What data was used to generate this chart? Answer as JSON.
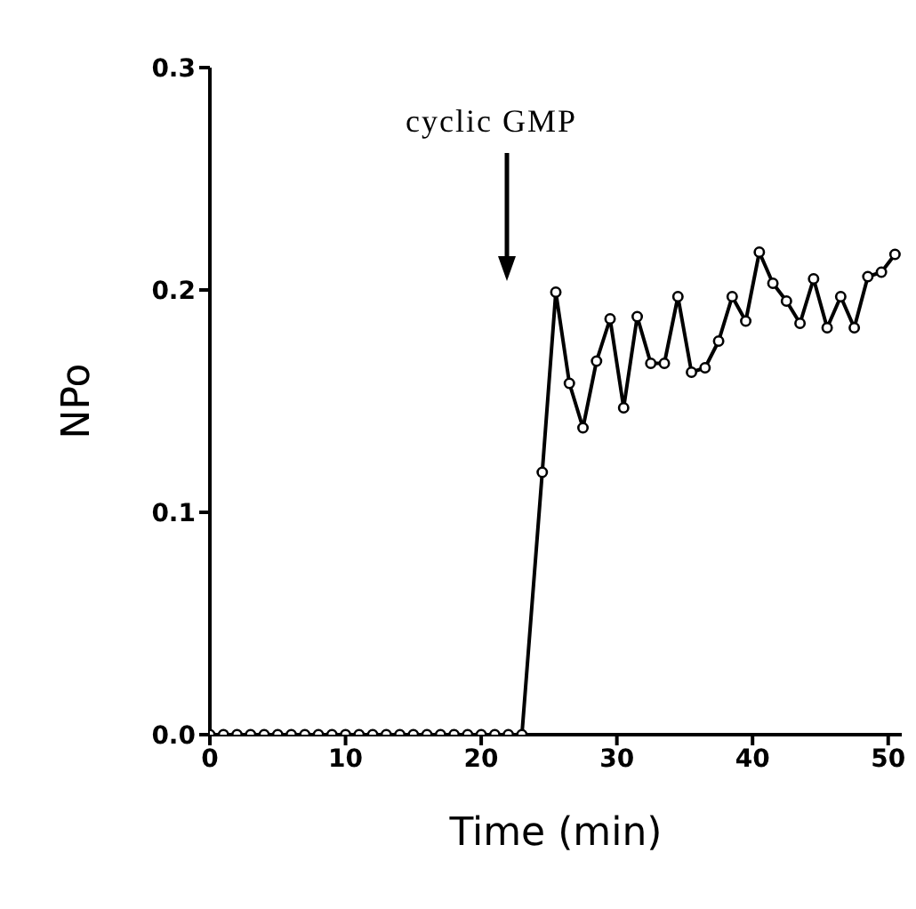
{
  "chart_data": {
    "type": "line",
    "xlabel": "Time (min)",
    "ylabel": "NPo",
    "annotations": [
      "cyclic GMP"
    ],
    "x": [
      0,
      1,
      2,
      3,
      4,
      5,
      6,
      7,
      8,
      9,
      10,
      11,
      12,
      13,
      14,
      15,
      16,
      17,
      18,
      19,
      20,
      21,
      22,
      23,
      24.5,
      25.5,
      26.5,
      27.5,
      28.5,
      29.5,
      30.5,
      31.5,
      32.5,
      33.5,
      34.5,
      35.5,
      36.5,
      37.5,
      38.5,
      39.5,
      40.5,
      41.5,
      42.5,
      43.5,
      44.5,
      45.5,
      46.5,
      47.5,
      48.5,
      49.5,
      50.5
    ],
    "series": [
      {
        "color": "#000000",
        "values": [
          0,
          0,
          0,
          0,
          0,
          0,
          0,
          0,
          0,
          0,
          0,
          0,
          0,
          0,
          0,
          0,
          0,
          0,
          0,
          0,
          0,
          0,
          0,
          0,
          0.118,
          0.199,
          0.158,
          0.138,
          0.168,
          0.187,
          0.147,
          0.188,
          0.167,
          0.167,
          0.197,
          0.163,
          0.165,
          0.177,
          0.197,
          0.186,
          0.217,
          0.203,
          0.195,
          0.185,
          0.205,
          0.183,
          0.197,
          0.183,
          0.206,
          0.208,
          0.216
        ]
      }
    ],
    "xlim": [
      0,
      51
    ],
    "xticks": [
      0,
      10,
      20,
      30,
      40,
      50
    ],
    "ylim": [
      0,
      0.3
    ],
    "yticks": [
      {
        "value": 0,
        "label": "0.0"
      },
      0.1,
      0.2,
      0.3
    ],
    "marker": "circle",
    "line_style": "solid",
    "grid": false,
    "legend": false
  }
}
